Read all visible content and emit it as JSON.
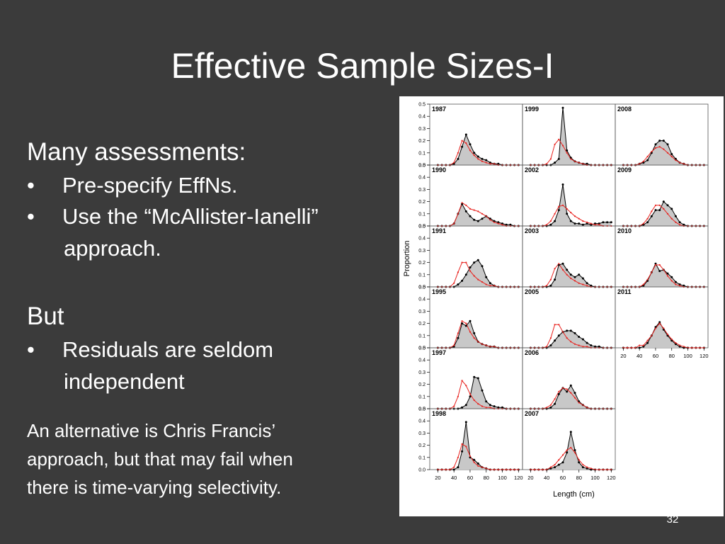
{
  "slide": {
    "title": "Effective Sample Sizes-I",
    "heading1": "Many assessments:",
    "bullets1": [
      {
        "text": "Pre-specify EffNs."
      },
      {
        "text": "Use the “McAllister-Ianelli”",
        "cont": "approach."
      }
    ],
    "heading2": "But",
    "bullets2": [
      {
        "text": "Residuals are seldom",
        "cont": "independent"
      }
    ],
    "note_lines": [
      "An alternative is Chris Francis’",
      "approach, but that may fail when",
      "there is time-varying selectivity."
    ],
    "bullet_char": "•",
    "page_number": "32"
  },
  "chart_data": {
    "type": "line",
    "xlabel": "Length (cm)",
    "ylabel": "Proportion",
    "xlim": [
      10,
      125
    ],
    "ylim": [
      0,
      0.5
    ],
    "x_ticks": [
      20,
      40,
      60,
      80,
      100,
      120
    ],
    "y_ticks": [
      0.0,
      0.1,
      0.2,
      0.3,
      0.4,
      0.5
    ],
    "grid": false,
    "x": [
      20,
      25,
      30,
      35,
      40,
      45,
      50,
      55,
      60,
      65,
      70,
      75,
      80,
      85,
      90,
      95,
      100,
      105,
      110,
      115,
      120
    ],
    "observed_color": "#000000",
    "fill_color": "#c8c8c8",
    "predicted_color": "#e8231f",
    "panels": [
      {
        "year": "1987",
        "col": 0,
        "row": 0,
        "observed": [
          0,
          0,
          0,
          0,
          0.01,
          0.05,
          0.15,
          0.25,
          0.17,
          0.1,
          0.07,
          0.05,
          0.04,
          0.02,
          0.01,
          0.01,
          0,
          0,
          0,
          0,
          0
        ],
        "predicted": [
          0,
          0,
          0,
          0,
          0.02,
          0.1,
          0.2,
          0.18,
          0.12,
          0.08,
          0.05,
          0.03,
          0.02,
          0.01,
          0.01,
          0,
          0,
          0,
          0,
          0,
          0
        ]
      },
      {
        "year": "1990",
        "col": 0,
        "row": 1,
        "observed": [
          0,
          0,
          0,
          0,
          0.02,
          0.1,
          0.18,
          0.12,
          0.08,
          0.05,
          0.04,
          0.06,
          0.08,
          0.06,
          0.04,
          0.03,
          0.02,
          0.01,
          0.01,
          0,
          0
        ],
        "predicted": [
          0,
          0,
          0,
          0,
          0.02,
          0.1,
          0.19,
          0.17,
          0.14,
          0.13,
          0.12,
          0.1,
          0.08,
          0.05,
          0.03,
          0.02,
          0.01,
          0,
          0,
          0,
          0
        ]
      },
      {
        "year": "1991",
        "col": 0,
        "row": 2,
        "observed": [
          0,
          0,
          0,
          0,
          0,
          0.02,
          0.05,
          0.1,
          0.16,
          0.2,
          0.22,
          0.17,
          0.08,
          0.03,
          0.01,
          0,
          0,
          0,
          0,
          0,
          0
        ],
        "predicted": [
          0,
          0,
          0,
          0,
          0.03,
          0.12,
          0.2,
          0.2,
          0.13,
          0.09,
          0.06,
          0.04,
          0.02,
          0.01,
          0.01,
          0,
          0,
          0,
          0,
          0,
          0
        ]
      },
      {
        "year": "1995",
        "col": 0,
        "row": 3,
        "observed": [
          0,
          0,
          0,
          0,
          0.01,
          0.08,
          0.2,
          0.18,
          0.22,
          0.12,
          0.05,
          0.03,
          0.02,
          0.01,
          0.01,
          0,
          0,
          0,
          0,
          0,
          0
        ],
        "predicted": [
          0,
          0,
          0,
          0,
          0.02,
          0.12,
          0.22,
          0.2,
          0.13,
          0.08,
          0.05,
          0.03,
          0.02,
          0.01,
          0.01,
          0,
          0,
          0,
          0,
          0,
          0
        ]
      },
      {
        "year": "1997",
        "col": 0,
        "row": 4,
        "observed": [
          0,
          0,
          0,
          0,
          0,
          0,
          0.01,
          0.03,
          0.1,
          0.26,
          0.25,
          0.15,
          0.06,
          0.03,
          0.02,
          0.01,
          0.01,
          0,
          0,
          0,
          0
        ],
        "predicted": [
          0,
          0,
          0,
          0,
          0.02,
          0.1,
          0.23,
          0.19,
          0.12,
          0.07,
          0.04,
          0.02,
          0.01,
          0.01,
          0,
          0,
          0,
          0,
          0,
          0,
          0
        ]
      },
      {
        "year": "1998",
        "col": 0,
        "row": 5,
        "observed": [
          0,
          0,
          0,
          0,
          0,
          0.02,
          0.15,
          0.39,
          0.1,
          0.08,
          0.05,
          0.02,
          0.01,
          0,
          0,
          0,
          0,
          0,
          0,
          0,
          0
        ],
        "predicted": [
          0,
          0,
          0,
          0,
          0.02,
          0.1,
          0.21,
          0.19,
          0.11,
          0.06,
          0.03,
          0.02,
          0.01,
          0,
          0,
          0,
          0,
          0,
          0,
          0,
          0
        ]
      },
      {
        "year": "1999",
        "col": 1,
        "row": 0,
        "observed": [
          0,
          0,
          0,
          0,
          0,
          0,
          0.02,
          0.05,
          0.47,
          0.12,
          0.06,
          0.03,
          0.02,
          0.01,
          0.01,
          0,
          0,
          0,
          0,
          0,
          0
        ],
        "predicted": [
          0,
          0,
          0,
          0,
          0.01,
          0.05,
          0.17,
          0.21,
          0.16,
          0.1,
          0.05,
          0.03,
          0.02,
          0.01,
          0,
          0,
          0,
          0,
          0,
          0,
          0
        ]
      },
      {
        "year": "2002",
        "col": 1,
        "row": 1,
        "observed": [
          0,
          0,
          0,
          0,
          0,
          0.01,
          0.04,
          0.13,
          0.34,
          0.1,
          0.04,
          0.02,
          0.02,
          0.01,
          0.02,
          0.01,
          0.02,
          0.02,
          0.03,
          0.03,
          0.03
        ],
        "predicted": [
          0,
          0,
          0,
          0,
          0.01,
          0.04,
          0.1,
          0.16,
          0.17,
          0.14,
          0.11,
          0.08,
          0.06,
          0.04,
          0.03,
          0.02,
          0.01,
          0.01,
          0,
          0,
          0
        ]
      },
      {
        "year": "2003",
        "col": 1,
        "row": 2,
        "observed": [
          0,
          0,
          0,
          0,
          0,
          0.01,
          0.06,
          0.18,
          0.19,
          0.14,
          0.1,
          0.08,
          0.1,
          0.07,
          0.03,
          0.01,
          0,
          0,
          0,
          0,
          0
        ],
        "predicted": [
          0,
          0,
          0,
          0,
          0.01,
          0.06,
          0.15,
          0.19,
          0.14,
          0.1,
          0.07,
          0.05,
          0.03,
          0.02,
          0.01,
          0,
          0,
          0,
          0,
          0,
          0
        ]
      },
      {
        "year": "2005",
        "col": 1,
        "row": 3,
        "observed": [
          0,
          0,
          0,
          0,
          0,
          0.02,
          0.06,
          0.1,
          0.13,
          0.14,
          0.14,
          0.12,
          0.09,
          0.07,
          0.04,
          0.02,
          0.01,
          0.01,
          0,
          0,
          0
        ],
        "predicted": [
          0,
          0,
          0,
          0,
          0.01,
          0.08,
          0.19,
          0.19,
          0.13,
          0.08,
          0.05,
          0.03,
          0.02,
          0.01,
          0.01,
          0,
          0,
          0,
          0,
          0,
          0
        ]
      },
      {
        "year": "2006",
        "col": 1,
        "row": 4,
        "observed": [
          0,
          0,
          0,
          0,
          0,
          0.01,
          0.04,
          0.12,
          0.17,
          0.14,
          0.19,
          0.13,
          0.06,
          0.03,
          0.01,
          0,
          0,
          0,
          0,
          0,
          0
        ],
        "predicted": [
          0,
          0,
          0,
          0,
          0.01,
          0.03,
          0.08,
          0.14,
          0.17,
          0.16,
          0.13,
          0.09,
          0.05,
          0.03,
          0.01,
          0,
          0,
          0,
          0,
          0,
          0
        ]
      },
      {
        "year": "2007",
        "col": 1,
        "row": 5,
        "observed": [
          0,
          0,
          0,
          0,
          0,
          0.01,
          0.02,
          0.04,
          0.06,
          0.14,
          0.31,
          0.16,
          0.06,
          0.02,
          0.01,
          0,
          0,
          0,
          0,
          0,
          0
        ],
        "predicted": [
          0,
          0,
          0,
          0,
          0,
          0.02,
          0.04,
          0.08,
          0.12,
          0.16,
          0.18,
          0.14,
          0.08,
          0.04,
          0.02,
          0.01,
          0,
          0,
          0,
          0,
          0
        ]
      },
      {
        "year": "2008",
        "col": 2,
        "row": 0,
        "observed": [
          0,
          0,
          0,
          0,
          0.01,
          0.02,
          0.04,
          0.1,
          0.17,
          0.2,
          0.2,
          0.17,
          0.09,
          0.05,
          0.02,
          0.01,
          0,
          0,
          0,
          0,
          0
        ],
        "predicted": [
          0,
          0,
          0,
          0,
          0.01,
          0.03,
          0.07,
          0.11,
          0.14,
          0.15,
          0.13,
          0.1,
          0.07,
          0.04,
          0.02,
          0.01,
          0,
          0,
          0,
          0,
          0
        ]
      },
      {
        "year": "2009",
        "col": 2,
        "row": 1,
        "observed": [
          0,
          0,
          0,
          0,
          0,
          0.01,
          0.03,
          0.08,
          0.13,
          0.13,
          0.2,
          0.17,
          0.14,
          0.08,
          0.03,
          0.01,
          0,
          0,
          0,
          0,
          0
        ],
        "predicted": [
          0,
          0,
          0,
          0,
          0,
          0.02,
          0.06,
          0.12,
          0.17,
          0.17,
          0.14,
          0.1,
          0.06,
          0.03,
          0.01,
          0,
          0,
          0,
          0,
          0,
          0
        ]
      },
      {
        "year": "2010",
        "col": 2,
        "row": 2,
        "observed": [
          0,
          0,
          0,
          0,
          0,
          0.01,
          0.05,
          0.12,
          0.19,
          0.13,
          0.14,
          0.11,
          0.08,
          0.04,
          0.02,
          0.01,
          0,
          0,
          0,
          0,
          0
        ],
        "predicted": [
          0,
          0,
          0,
          0,
          0,
          0.02,
          0.06,
          0.12,
          0.18,
          0.18,
          0.14,
          0.09,
          0.05,
          0.02,
          0.01,
          0,
          0,
          0,
          0,
          0,
          0
        ]
      },
      {
        "year": "2011",
        "col": 2,
        "row": 3,
        "observed": [
          0,
          0,
          0,
          0,
          0,
          0.01,
          0.04,
          0.1,
          0.17,
          0.21,
          0.15,
          0.1,
          0.06,
          0.03,
          0.01,
          0,
          0,
          0,
          0,
          0,
          0
        ],
        "predicted": [
          0,
          0,
          0,
          0,
          0.02,
          0.02,
          0.06,
          0.1,
          0.16,
          0.2,
          0.16,
          0.11,
          0.07,
          0.04,
          0.02,
          0.01,
          0,
          0,
          0,
          0,
          0
        ]
      }
    ]
  }
}
